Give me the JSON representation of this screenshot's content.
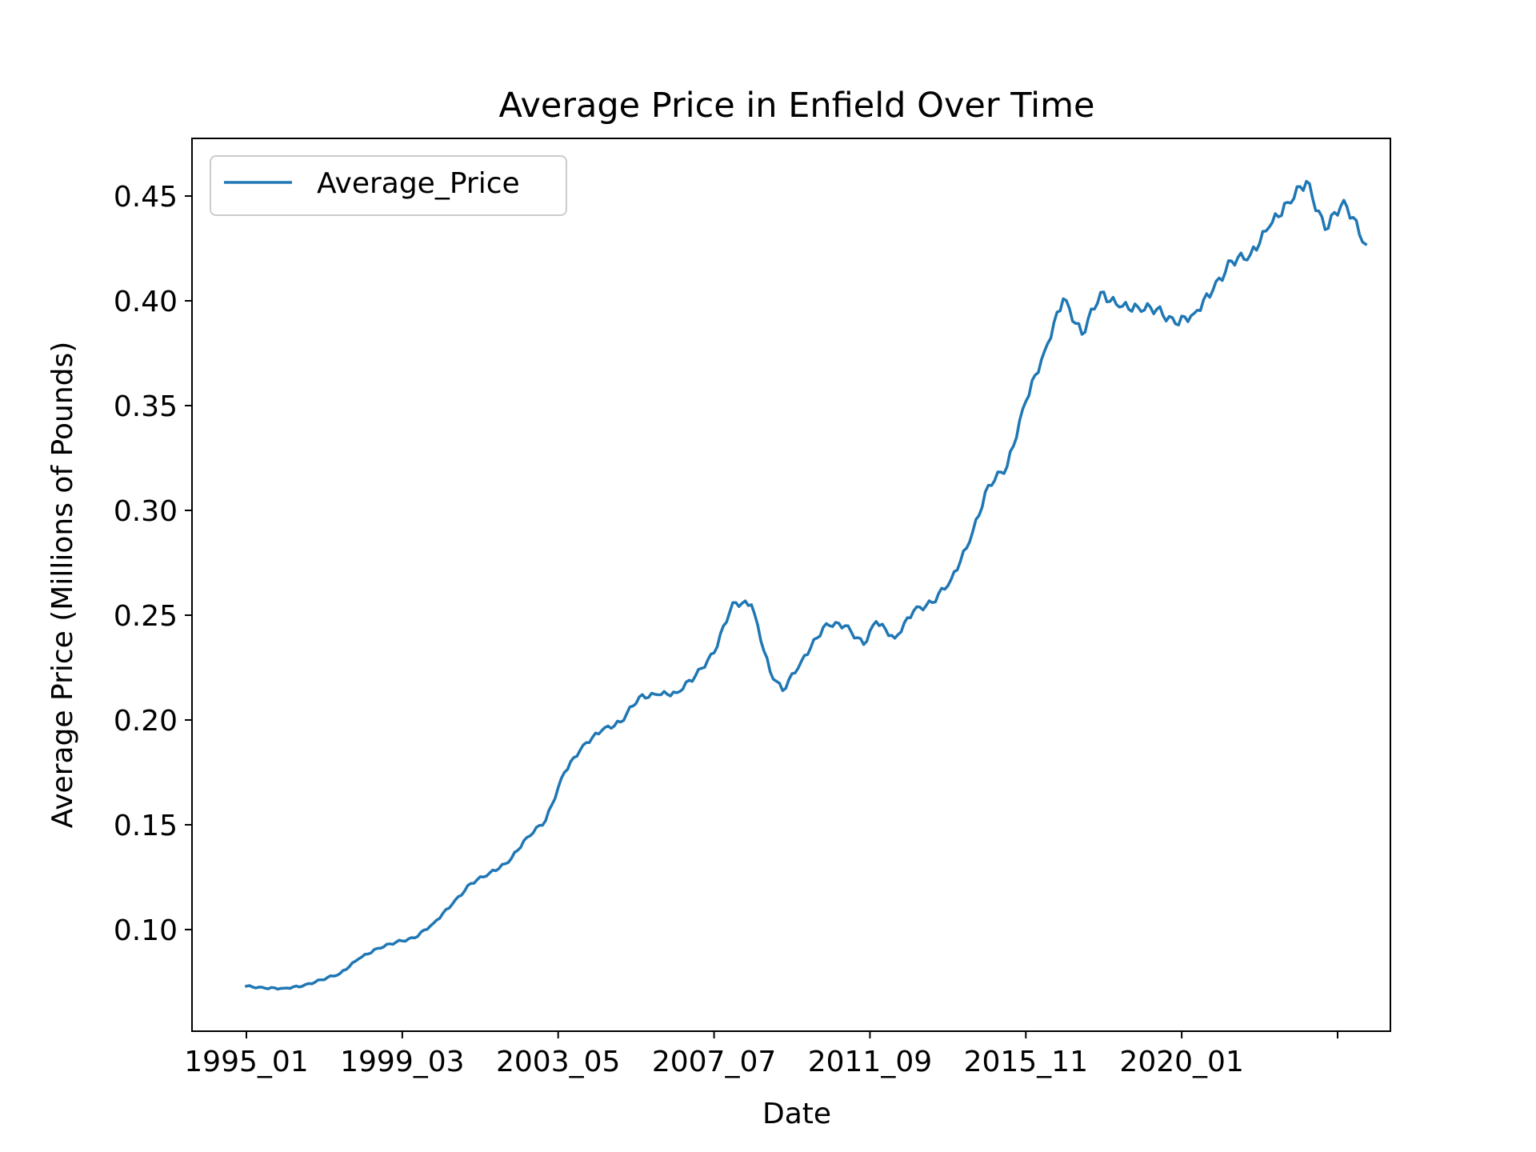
{
  "chart_data": {
    "type": "line",
    "title": "Average Price in Enfield Over Time",
    "xlabel": "Date",
    "ylabel": "Average Price (Millions of Pounds)",
    "x_tick_labels": [
      "1995_01",
      "1999_03",
      "2003_05",
      "2007_07",
      "2011_09",
      "2015_11",
      "2020_01",
      ""
    ],
    "y_tick_labels": [
      "0.10",
      "0.15",
      "0.20",
      "0.25",
      "0.30",
      "0.35",
      "0.40",
      "0.45"
    ],
    "y_ticks": [
      0.1,
      0.15,
      0.2,
      0.25,
      0.3,
      0.35,
      0.4,
      0.45
    ],
    "ylim": [
      0.0515,
      0.4775
    ],
    "legend": {
      "position": "upper left",
      "entries": [
        "Average_Price"
      ]
    },
    "grid": false,
    "series": [
      {
        "name": "Average_Price",
        "color": "#1f77b4",
        "x_start": "1995_01",
        "x_step": "1 month",
        "points": [
          [
            "1995_01",
            0.073
          ],
          [
            "1995_07",
            0.072
          ],
          [
            "1996_01",
            0.072
          ],
          [
            "1996_07",
            0.073
          ],
          [
            "1997_01",
            0.076
          ],
          [
            "1997_07",
            0.079
          ],
          [
            "1998_01",
            0.086
          ],
          [
            "1998_07",
            0.091
          ],
          [
            "1999_01",
            0.094
          ],
          [
            "1999_07",
            0.096
          ],
          [
            "2000_01",
            0.103
          ],
          [
            "2000_07",
            0.112
          ],
          [
            "2001_01",
            0.122
          ],
          [
            "2001_07",
            0.127
          ],
          [
            "2002_01",
            0.132
          ],
          [
            "2002_07",
            0.144
          ],
          [
            "2003_01",
            0.152
          ],
          [
            "2003_07",
            0.175
          ],
          [
            "2004_01",
            0.188
          ],
          [
            "2004_07",
            0.195
          ],
          [
            "2005_01",
            0.199
          ],
          [
            "2005_07",
            0.211
          ],
          [
            "2006_01",
            0.212
          ],
          [
            "2006_07",
            0.213
          ],
          [
            "2007_01",
            0.221
          ],
          [
            "2007_07",
            0.232
          ],
          [
            "2008_01",
            0.256
          ],
          [
            "2008_07",
            0.255
          ],
          [
            "2009_01",
            0.223
          ],
          [
            "2009_05",
            0.214
          ],
          [
            "2009_11",
            0.228
          ],
          [
            "2010_07",
            0.246
          ],
          [
            "2011_01",
            0.245
          ],
          [
            "2011_07",
            0.236
          ],
          [
            "2011_11",
            0.247
          ],
          [
            "2012_05",
            0.239
          ],
          [
            "2012_11",
            0.252
          ],
          [
            "2013_05",
            0.256
          ],
          [
            "2013_11",
            0.267
          ],
          [
            "2014_05",
            0.285
          ],
          [
            "2014_11",
            0.312
          ],
          [
            "2015_05",
            0.321
          ],
          [
            "2015_11",
            0.352
          ],
          [
            "2016_05",
            0.376
          ],
          [
            "2016_11",
            0.401
          ],
          [
            "2017_05",
            0.384
          ],
          [
            "2017_11",
            0.404
          ],
          [
            "2018_05",
            0.397
          ],
          [
            "2018_11",
            0.397
          ],
          [
            "2019_05",
            0.396
          ],
          [
            "2019_11",
            0.389
          ],
          [
            "2020_05",
            0.394
          ],
          [
            "2020_11",
            0.405
          ],
          [
            "2021_05",
            0.419
          ],
          [
            "2021_11",
            0.422
          ],
          [
            "2022_05",
            0.435
          ],
          [
            "2022_11",
            0.447
          ],
          [
            "2023_05",
            0.457
          ],
          [
            "2023_11",
            0.434
          ],
          [
            "2024_05",
            0.448
          ],
          [
            "2024_12",
            0.427
          ]
        ]
      }
    ]
  }
}
